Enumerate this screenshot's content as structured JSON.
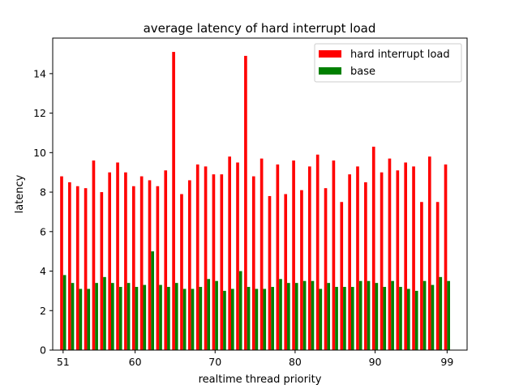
{
  "chart_data": {
    "type": "bar",
    "title": "average latency of hard interrupt load",
    "xlabel": "realtime thread priority",
    "ylabel": "latency",
    "x": [
      51,
      52,
      53,
      54,
      55,
      56,
      57,
      58,
      59,
      60,
      61,
      62,
      63,
      64,
      65,
      66,
      67,
      68,
      69,
      70,
      71,
      72,
      73,
      74,
      75,
      76,
      77,
      78,
      79,
      80,
      81,
      82,
      83,
      84,
      85,
      86,
      87,
      88,
      89,
      90,
      91,
      92,
      93,
      94,
      95,
      96,
      97,
      98,
      99
    ],
    "xlim": [
      49.7,
      101.5
    ],
    "ylim": [
      0,
      15.8
    ],
    "xticks": [
      51,
      60,
      70,
      80,
      90,
      99
    ],
    "yticks": [
      0,
      2,
      4,
      6,
      8,
      10,
      12,
      14
    ],
    "legend_position": "top-right",
    "grid": false,
    "series": [
      {
        "name": "hard interrupt load",
        "color": "#ff0000",
        "values": [
          8.8,
          8.5,
          8.3,
          8.2,
          9.6,
          8.0,
          9.0,
          9.5,
          9.0,
          8.3,
          8.8,
          8.6,
          8.3,
          9.1,
          15.1,
          7.9,
          8.6,
          9.4,
          9.3,
          8.9,
          8.9,
          9.8,
          9.5,
          14.9,
          8.8,
          9.7,
          7.8,
          9.4,
          7.9,
          9.6,
          8.1,
          9.3,
          9.9,
          8.2,
          9.6,
          7.5,
          8.9,
          9.3,
          8.5,
          10.3,
          9.0,
          9.7,
          9.1,
          9.5,
          9.3,
          7.5,
          9.8,
          7.5,
          9.4
        ]
      },
      {
        "name": "base",
        "color": "#008000",
        "values": [
          3.8,
          3.4,
          3.1,
          3.1,
          3.4,
          3.7,
          3.4,
          3.2,
          3.4,
          3.2,
          3.3,
          5.0,
          3.3,
          3.2,
          3.4,
          3.1,
          3.1,
          3.2,
          3.6,
          3.5,
          3.0,
          3.1,
          4.0,
          3.2,
          3.1,
          3.1,
          3.2,
          3.6,
          3.4,
          3.4,
          3.5,
          3.5,
          3.1,
          3.4,
          3.2,
          3.2,
          3.2,
          3.5,
          3.5,
          3.4,
          3.2,
          3.5,
          3.2,
          3.1,
          3.0,
          3.5,
          3.3,
          3.7,
          3.5
        ]
      }
    ]
  }
}
